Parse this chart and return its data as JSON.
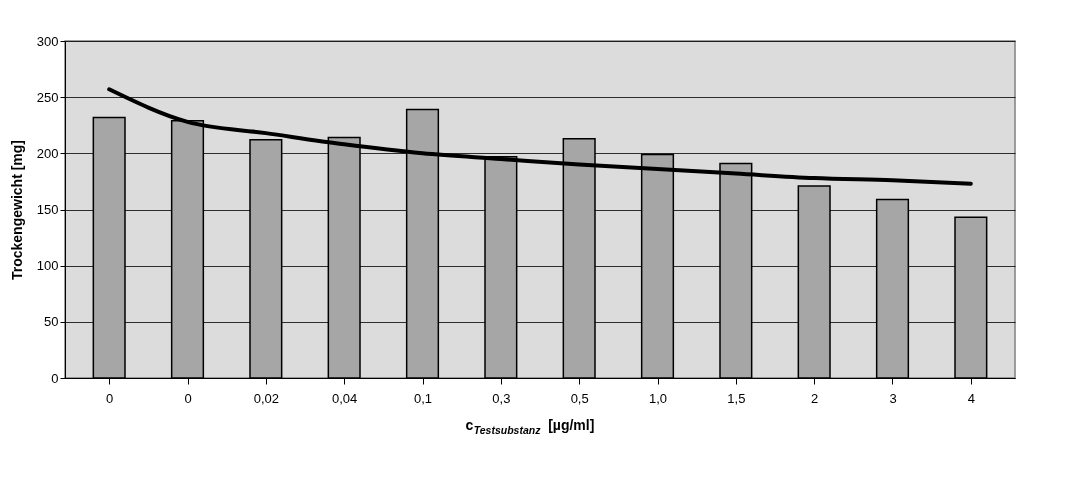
{
  "chart_data": {
    "type": "bar",
    "xlabel": "c$_{Testsubstanz}$ [µg/ml]",
    "ylabel": "Trockengewicht [mg]",
    "categories": [
      "0",
      "0",
      "0,02",
      "0,04",
      "0,1",
      "0,3",
      "0,5",
      "1,0",
      "1,5",
      "2",
      "3",
      "4"
    ],
    "series": [
      {
        "color": "#a6a6a6",
        "values": [
          232,
          229,
          212,
          214,
          239,
          197,
          213,
          199,
          191,
          171,
          159,
          143
        ]
      },
      {
        "type": "line",
        "color": "#000000",
        "values": [
          257,
          228,
          218,
          208,
          200,
          195,
          190,
          186,
          182,
          178,
          176,
          173
        ]
      }
    ],
    "ylim": [
      0,
      300
    ],
    "yticks": [
      0,
      50,
      100,
      150,
      200,
      250,
      300
    ],
    "grid": "y"
  }
}
